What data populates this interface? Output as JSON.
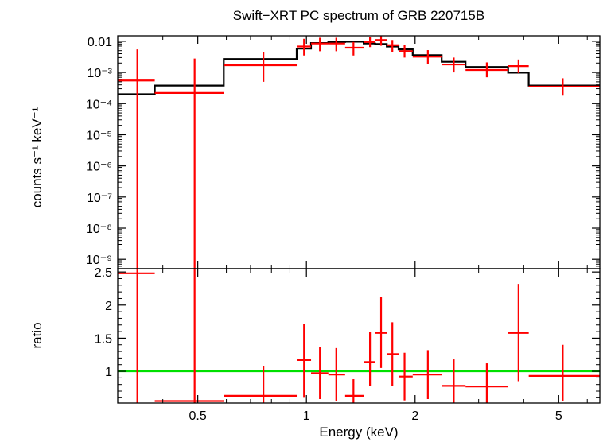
{
  "chart_data": [
    {
      "type": "line",
      "panel": "spectrum",
      "title": "Swift−XRT PC spectrum of GRB 220715B",
      "xlabel": "",
      "ylabel": "counts s⁻¹ keV⁻¹",
      "xscale": "log",
      "yscale": "log",
      "xlim": [
        0.3,
        6.5
      ],
      "ylim": [
        5e-10,
        0.015
      ],
      "x_tick_labels": [],
      "y_tick_labels": [
        "0.01",
        "10⁻³",
        "10⁻⁴",
        "10⁻⁵",
        "10⁻⁶",
        "10⁻⁷",
        "10⁻⁸",
        "10⁻⁹"
      ],
      "y_tick_values": [
        0.01,
        0.001,
        0.0001,
        1e-05,
        1e-06,
        1e-07,
        1e-08,
        1e-09
      ],
      "series": [
        {
          "kind": "data",
          "color": "#ff0000",
          "points": [
            {
              "x": 0.34,
              "xlo": 0.3,
              "xhi": 0.38,
              "y": 0.00055,
              "ylo": 4e-10,
              "yhi": 0.0055
            },
            {
              "x": 0.49,
              "xlo": 0.38,
              "xhi": 0.59,
              "y": 0.00022,
              "ylo": 4e-10,
              "yhi": 0.0028
            },
            {
              "x": 0.76,
              "xlo": 0.59,
              "xhi": 0.94,
              "y": 0.0017,
              "ylo": 0.0005,
              "yhi": 0.0045
            },
            {
              "x": 0.985,
              "xlo": 0.94,
              "xhi": 1.03,
              "y": 0.0068,
              "ylo": 0.0035,
              "yhi": 0.012
            },
            {
              "x": 1.09,
              "xlo": 1.03,
              "xhi": 1.15,
              "y": 0.0085,
              "ylo": 0.0048,
              "yhi": 0.013
            },
            {
              "x": 1.21,
              "xlo": 1.15,
              "xhi": 1.28,
              "y": 0.0085,
              "ylo": 0.0048,
              "yhi": 0.013
            },
            {
              "x": 1.35,
              "xlo": 1.28,
              "xhi": 1.44,
              "y": 0.0062,
              "ylo": 0.0035,
              "yhi": 0.0095
            },
            {
              "x": 1.5,
              "xlo": 1.44,
              "xhi": 1.55,
              "y": 0.0095,
              "ylo": 0.0065,
              "yhi": 0.014
            },
            {
              "x": 1.61,
              "xlo": 1.55,
              "xhi": 1.67,
              "y": 0.011,
              "ylo": 0.0072,
              "yhi": 0.015
            },
            {
              "x": 1.73,
              "xlo": 1.67,
              "xhi": 1.8,
              "y": 0.0075,
              "ylo": 0.0045,
              "yhi": 0.011
            },
            {
              "x": 1.87,
              "xlo": 1.8,
              "xhi": 1.97,
              "y": 0.0048,
              "ylo": 0.003,
              "yhi": 0.0075
            },
            {
              "x": 2.17,
              "xlo": 1.97,
              "xhi": 2.37,
              "y": 0.0032,
              "ylo": 0.0019,
              "yhi": 0.0052
            },
            {
              "x": 2.56,
              "xlo": 2.37,
              "xhi": 2.76,
              "y": 0.0018,
              "ylo": 0.001,
              "yhi": 0.003
            },
            {
              "x": 3.16,
              "xlo": 2.76,
              "xhi": 3.62,
              "y": 0.0012,
              "ylo": 0.0007,
              "yhi": 0.0021
            },
            {
              "x": 3.87,
              "xlo": 3.62,
              "xhi": 4.13,
              "y": 0.0016,
              "ylo": 0.00095,
              "yhi": 0.0026
            },
            {
              "x": 5.13,
              "xlo": 4.13,
              "xhi": 6.5,
              "y": 0.00035,
              "ylo": 0.00018,
              "yhi": 0.00065
            }
          ]
        },
        {
          "kind": "model",
          "color": "#000000",
          "steps": [
            {
              "xlo": 0.3,
              "xhi": 0.38,
              "y": 0.0002
            },
            {
              "xlo": 0.38,
              "xhi": 0.59,
              "y": 0.00038
            },
            {
              "xlo": 0.59,
              "xhi": 0.94,
              "y": 0.0027
            },
            {
              "xlo": 0.94,
              "xhi": 1.03,
              "y": 0.0058
            },
            {
              "xlo": 1.03,
              "xhi": 1.15,
              "y": 0.0088
            },
            {
              "xlo": 1.15,
              "xhi": 1.28,
              "y": 0.0095
            },
            {
              "xlo": 1.28,
              "xhi": 1.44,
              "y": 0.0097
            },
            {
              "xlo": 1.44,
              "xhi": 1.55,
              "y": 0.0085
            },
            {
              "xlo": 1.55,
              "xhi": 1.67,
              "y": 0.0082
            },
            {
              "xlo": 1.67,
              "xhi": 1.8,
              "y": 0.0068
            },
            {
              "xlo": 1.8,
              "xhi": 1.97,
              "y": 0.0055
            },
            {
              "xlo": 1.97,
              "xhi": 2.37,
              "y": 0.0036
            },
            {
              "xlo": 2.37,
              "xhi": 2.76,
              "y": 0.0022
            },
            {
              "xlo": 2.76,
              "xhi": 3.62,
              "y": 0.0015
            },
            {
              "xlo": 3.62,
              "xhi": 4.13,
              "y": 0.00098
            },
            {
              "xlo": 4.13,
              "xhi": 6.5,
              "y": 0.00038
            }
          ]
        }
      ]
    },
    {
      "type": "line",
      "panel": "ratio",
      "title": "",
      "xlabel": "Energy (keV)",
      "ylabel": "ratio",
      "xscale": "log",
      "yscale": "linear",
      "xlim": [
        0.3,
        6.5
      ],
      "ylim": [
        0.52,
        2.55
      ],
      "x_tick_labels": [
        "0.5",
        "1",
        "2",
        "5"
      ],
      "x_tick_values": [
        0.5,
        1,
        2,
        5
      ],
      "y_tick_labels": [
        "2.5",
        "2",
        "1.5",
        "1"
      ],
      "y_tick_values": [
        2.5,
        2,
        1.5,
        1
      ],
      "series": [
        {
          "kind": "data",
          "color": "#ff0000",
          "points": [
            {
              "x": 0.34,
              "xlo": 0.3,
              "xhi": 0.38,
              "y": 2.48,
              "ylo": 0.4,
              "yhi": 2.6
            },
            {
              "x": 0.49,
              "xlo": 0.38,
              "xhi": 0.59,
              "y": 0.55,
              "ylo": 0.4,
              "yhi": 2.6
            },
            {
              "x": 0.76,
              "xlo": 0.59,
              "xhi": 0.94,
              "y": 0.63,
              "ylo": 0.52,
              "yhi": 1.08
            },
            {
              "x": 0.985,
              "xlo": 0.94,
              "xhi": 1.03,
              "y": 1.17,
              "ylo": 0.6,
              "yhi": 1.72
            },
            {
              "x": 1.09,
              "xlo": 1.03,
              "xhi": 1.15,
              "y": 0.97,
              "ylo": 0.58,
              "yhi": 1.37
            },
            {
              "x": 1.21,
              "xlo": 1.15,
              "xhi": 1.28,
              "y": 0.95,
              "ylo": 0.55,
              "yhi": 1.35
            },
            {
              "x": 1.35,
              "xlo": 1.28,
              "xhi": 1.44,
              "y": 0.63,
              "ylo": 0.52,
              "yhi": 0.88
            },
            {
              "x": 1.5,
              "xlo": 1.44,
              "xhi": 1.55,
              "y": 1.14,
              "ylo": 0.78,
              "yhi": 1.6
            },
            {
              "x": 1.61,
              "xlo": 1.55,
              "xhi": 1.67,
              "y": 1.58,
              "ylo": 1.05,
              "yhi": 2.12
            },
            {
              "x": 1.73,
              "xlo": 1.67,
              "xhi": 1.8,
              "y": 1.26,
              "ylo": 0.78,
              "yhi": 1.74
            },
            {
              "x": 1.87,
              "xlo": 1.8,
              "xhi": 1.97,
              "y": 0.92,
              "ylo": 0.56,
              "yhi": 1.28
            },
            {
              "x": 2.17,
              "xlo": 1.97,
              "xhi": 2.37,
              "y": 0.95,
              "ylo": 0.58,
              "yhi": 1.32
            },
            {
              "x": 2.56,
              "xlo": 2.37,
              "xhi": 2.76,
              "y": 0.78,
              "ylo": 0.52,
              "yhi": 1.18
            },
            {
              "x": 3.16,
              "xlo": 2.76,
              "xhi": 3.62,
              "y": 0.77,
              "ylo": 0.52,
              "yhi": 1.12
            },
            {
              "x": 3.87,
              "xlo": 3.62,
              "xhi": 4.13,
              "y": 1.58,
              "ylo": 0.85,
              "yhi": 2.32
            },
            {
              "x": 5.13,
              "xlo": 4.13,
              "xhi": 6.5,
              "y": 0.93,
              "ylo": 0.55,
              "yhi": 1.4
            }
          ]
        },
        {
          "kind": "reference",
          "color": "#00e000",
          "y": 1
        }
      ]
    }
  ]
}
